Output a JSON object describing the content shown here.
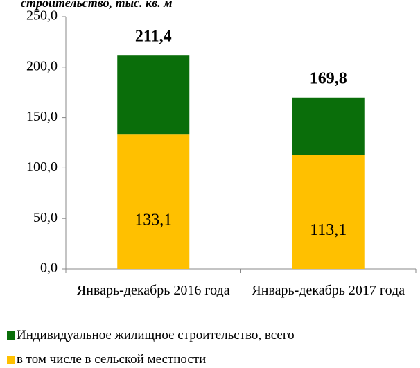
{
  "chart_data": {
    "type": "stacked_bar",
    "title": "строительство, тыс. кв. м",
    "categories": [
      "Январь-декабрь 2016 года",
      "Январь-декабрь 2017 года"
    ],
    "series": [
      {
        "name": "в том числе в сельской местности",
        "color": "#ffc000",
        "values": [
          133.1,
          113.1
        ],
        "value_labels": [
          "133,1",
          "113,1"
        ]
      },
      {
        "name": "Индивидуальное жилищное строительство, всего",
        "color": "#0a6e0a",
        "values": [
          78.3,
          56.7
        ]
      }
    ],
    "totals": [
      211.4,
      169.8
    ],
    "total_labels": [
      "211,4",
      "169,8"
    ],
    "ylim": [
      0,
      250
    ],
    "yticks": [
      {
        "value": 0,
        "label": "0,0"
      },
      {
        "value": 50,
        "label": "50,0"
      },
      {
        "value": 100,
        "label": "100,0"
      },
      {
        "value": 150,
        "label": "150,0"
      },
      {
        "value": 200,
        "label": "200,0"
      },
      {
        "value": 250,
        "label": "250,0"
      }
    ],
    "legend_order": [
      1,
      0
    ]
  }
}
